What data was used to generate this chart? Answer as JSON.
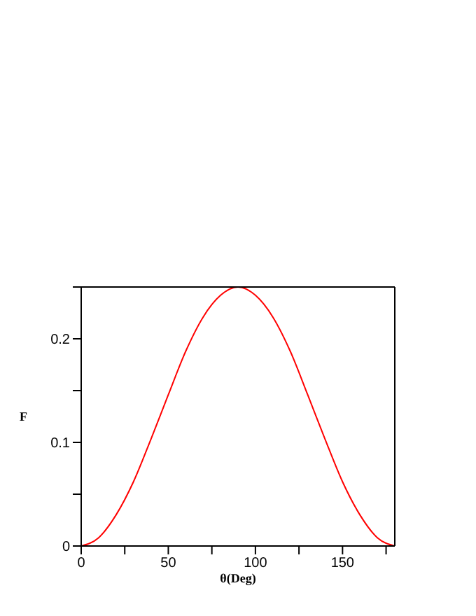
{
  "chart_data": {
    "type": "line",
    "xlabel": "θ(Deg)",
    "ylabel": "F",
    "x": [
      0,
      10,
      20,
      30,
      40,
      50,
      60,
      70,
      80,
      90,
      100,
      110,
      120,
      130,
      140,
      150,
      160,
      170,
      180
    ],
    "series": [
      {
        "color": "#ff0000",
        "values": [
          0,
          0.008,
          0.03,
          0.062,
          0.103,
          0.146,
          0.188,
          0.221,
          0.242,
          0.25,
          0.242,
          0.221,
          0.188,
          0.146,
          0.103,
          0.062,
          0.03,
          0.008,
          0
        ]
      }
    ],
    "xlim": [
      0,
      180
    ],
    "ylim": [
      0,
      0.25
    ],
    "xticks": [
      0,
      {
        "value": 25,
        "label": null
      },
      50,
      {
        "value": 75,
        "label": null
      },
      100,
      {
        "value": 125,
        "label": null
      },
      150,
      {
        "value": 175,
        "label": null
      }
    ],
    "yticks": [
      0,
      {
        "value": 0.05,
        "label": null
      },
      0.1,
      {
        "value": 0.15,
        "label": null
      },
      0.2,
      {
        "value": 0.25,
        "label": null
      }
    ],
    "marker": "none",
    "line_style": "solid",
    "grid": false,
    "legend": false
  }
}
